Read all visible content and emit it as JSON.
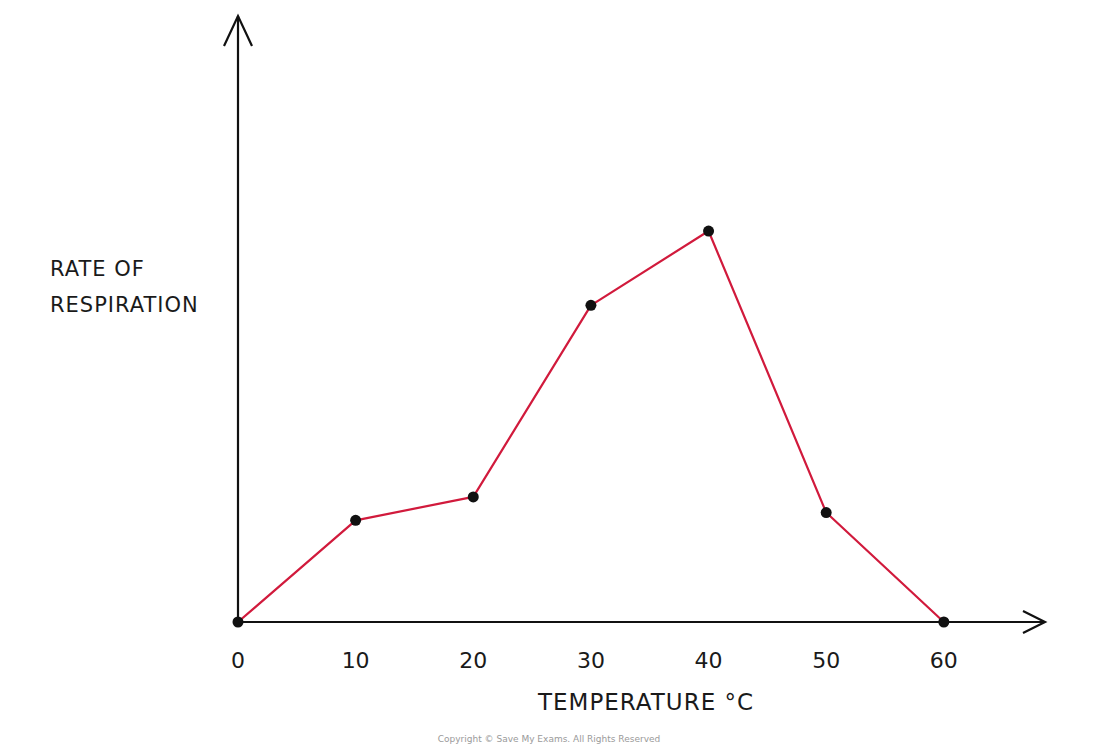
{
  "chart_data": {
    "type": "line",
    "x_label": "TEMPERATURE °C",
    "y_label": "RATE OF RESPIRATION",
    "copyright": "Copyright © Save My Exams. All Rights Reserved",
    "x": [
      0,
      10,
      20,
      30,
      40,
      50,
      60
    ],
    "values": [
      0,
      26,
      32,
      81,
      100,
      28,
      0
    ],
    "color": "#d11a3c",
    "marker": "circle",
    "xlim": [
      0,
      68.6
    ],
    "ylim": [
      0,
      155
    ],
    "xticks": [
      0,
      10,
      20,
      30,
      40,
      50,
      60
    ],
    "tick_labels": "x",
    "grid": false
  }
}
